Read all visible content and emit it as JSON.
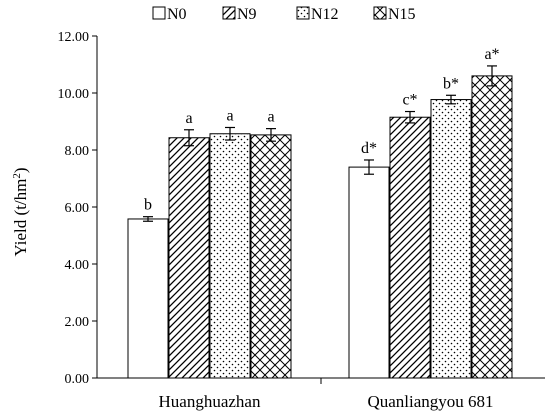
{
  "chart_data": {
    "type": "bar",
    "categories": [
      "Huanghuazhan",
      "Quanliangyou 681"
    ],
    "series": [
      {
        "name": "N0",
        "pattern": "none",
        "values": [
          5.58,
          7.4
        ],
        "errors": [
          0.08,
          0.25
        ],
        "labels": [
          "b",
          "d*"
        ]
      },
      {
        "name": "N9",
        "pattern": "diagonal",
        "values": [
          8.43,
          9.15
        ],
        "errors": [
          0.28,
          0.2
        ],
        "labels": [
          "a",
          "c*"
        ]
      },
      {
        "name": "N12",
        "pattern": "dots",
        "values": [
          8.57,
          9.77
        ],
        "errors": [
          0.22,
          0.15
        ],
        "labels": [
          "a",
          "b*"
        ]
      },
      {
        "name": "N15",
        "pattern": "crosshatch",
        "values": [
          8.53,
          10.6
        ],
        "errors": [
          0.22,
          0.35
        ],
        "labels": [
          "a",
          "a*"
        ]
      }
    ],
    "ylabel_main": "Yield",
    "ylabel_unit_main": "t/hm",
    "ylabel_unit_sup": "2",
    "ylim": [
      0,
      12
    ],
    "yticks": [
      "0.00",
      "2.00",
      "4.00",
      "6.00",
      "8.00",
      "10.00",
      "12.00"
    ],
    "legend_position": "top",
    "grid": false
  }
}
